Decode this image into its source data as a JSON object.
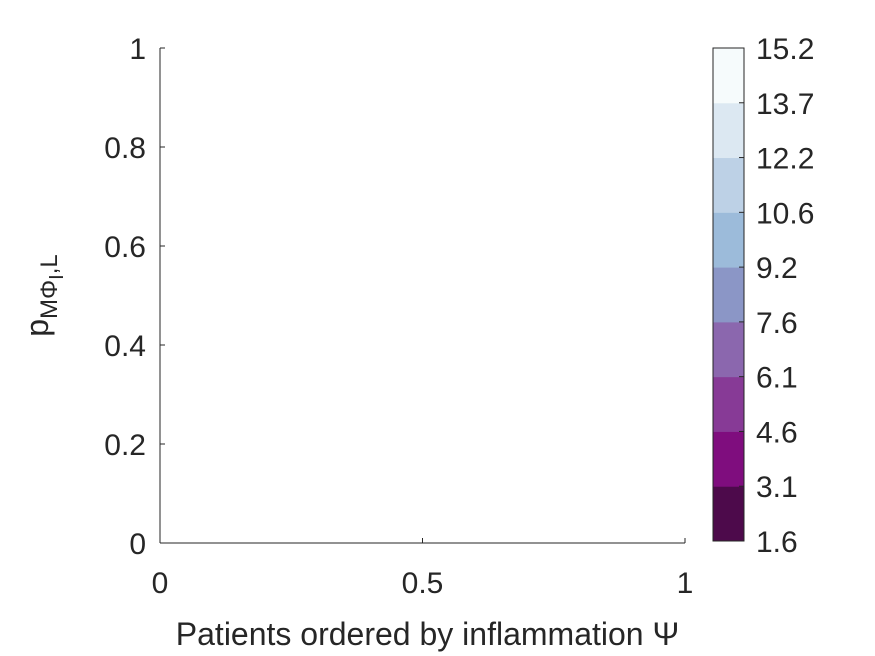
{
  "chart_data": {
    "type": "heatmap",
    "title": "",
    "xlabel": "Patients ordered by inflammation Ψ",
    "ylabel": {
      "base": "p",
      "sub": "MΦ",
      "subsub": "I",
      "tail": ",L"
    },
    "xlim": [
      0,
      1
    ],
    "ylim": [
      0,
      1
    ],
    "xticks": [
      "0",
      "0.5",
      "1"
    ],
    "yticks": [
      "0",
      "0.2",
      "0.4",
      "0.6",
      "0.8",
      "1"
    ],
    "values": [],
    "grid": false,
    "colorbar": {
      "ticks": [
        "1.6",
        "3.1",
        "4.6",
        "6.1",
        "7.6",
        "9.2",
        "10.6",
        "12.2",
        "13.7",
        "15.2"
      ],
      "colors": [
        "#4d0a4b",
        "#7f0d7e",
        "#873a96",
        "#8b67ae",
        "#8b96c6",
        "#9cbbda",
        "#bdd1e6",
        "#dce8f2",
        "#f6fbfc"
      ]
    }
  }
}
